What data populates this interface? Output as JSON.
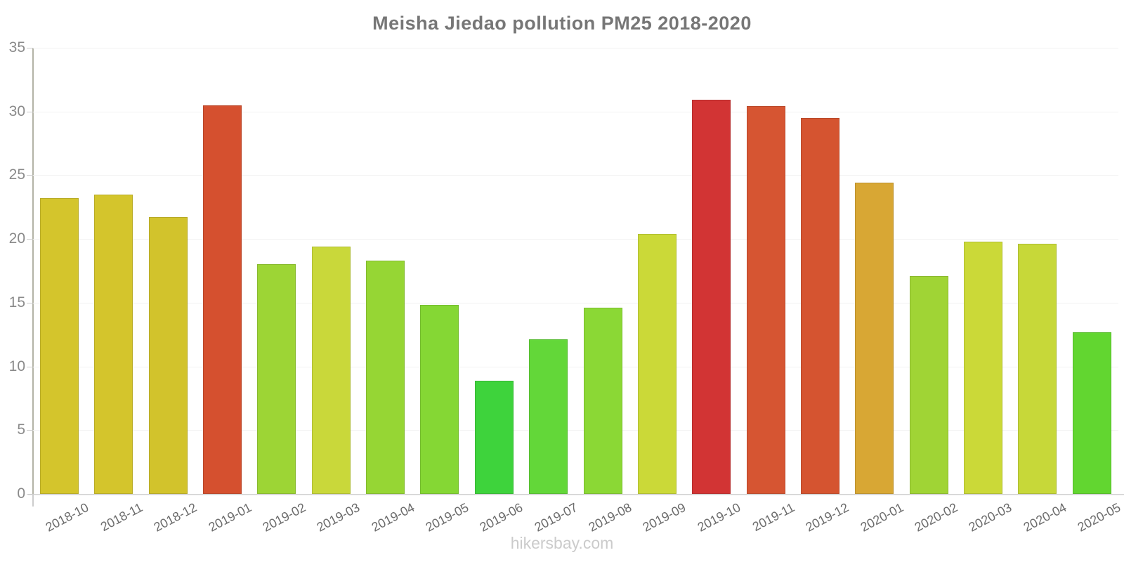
{
  "title": "Meisha Jiedao pollution PM25 2018-2020",
  "footer": {
    "text": "hikersbay.com"
  },
  "chart_data": {
    "type": "bar",
    "title": "Meisha Jiedao pollution PM25 2018-2020",
    "categories": [
      "2018-10",
      "2018-11",
      "2018-12",
      "2019-01",
      "2019-02",
      "2019-03",
      "2019-04",
      "2019-05",
      "2019-06",
      "2019-07",
      "2019-08",
      "2019-09",
      "2019-10",
      "2019-11",
      "2019-12",
      "2020-01",
      "2020-02",
      "2020-03",
      "2020-04",
      "2020-05"
    ],
    "values": [
      23.2,
      23.5,
      21.7,
      30.5,
      18.0,
      19.4,
      18.3,
      14.8,
      8.9,
      12.1,
      14.6,
      20.4,
      30.9,
      30.4,
      29.5,
      24.4,
      17.1,
      19.8,
      19.6,
      12.7
    ],
    "bar_colors": [
      "#d4c52c",
      "#d4c52c",
      "#d2c32c",
      "#d5502f",
      "#9dd535",
      "#c9d83a",
      "#96d634",
      "#85d734",
      "#3ed33c",
      "#63d739",
      "#8bd835",
      "#cbd938",
      "#d23434",
      "#d65532",
      "#d55430",
      "#d8a734",
      "#a0d435",
      "#cbd938",
      "#c7d839",
      "#62d630"
    ],
    "xlabel": "",
    "ylabel": "",
    "ylim": [
      0,
      35
    ],
    "y_ticks": [
      0,
      5,
      10,
      15,
      20,
      25,
      30,
      35
    ],
    "grid": true,
    "legend_position": "none",
    "footer": "hikersbay.com"
  }
}
